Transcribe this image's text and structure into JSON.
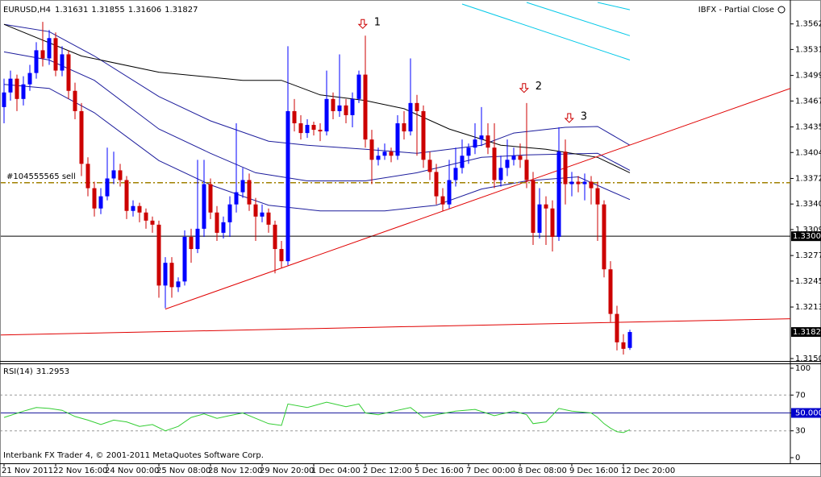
{
  "chart_data": {
    "type": "candlestick",
    "title": "EURUSD,H4",
    "broker": "IBFX - Partial Close",
    "footer": "Interbank FX Trader 4, © 2001-2011 MetaQuotes Software Corp.",
    "up_color": "#0000ff",
    "down_color": "#cc0000",
    "xlim": [
      -0.625,
      121.875
    ],
    "ylim": [
      1.3147,
      1.359
    ],
    "yticks": [
      1.35625,
      {
        "value": 1.3531,
        "label": "1.35310"
      },
      {
        "value": 1.3499,
        "label": "1.34990"
      },
      1.34675,
      1.34355,
      {
        "value": 1.3404,
        "label": "1.34040"
      },
      {
        "value": 1.3372,
        "label": "1.33720"
      },
      1.33405,
      {
        "value": 1.3309,
        "label": "1.33090"
      },
      {
        "value": 1.3277,
        "label": "1.32770"
      },
      1.32455,
      1.32135,
      {
        "value": 1.315,
        "label": "1.31500"
      }
    ],
    "xticks": [
      {
        "value": 0,
        "label": "21 Nov 2011"
      },
      {
        "value": 8,
        "label": "22 Nov 16:00"
      },
      {
        "value": 16,
        "label": "24 Nov 00:00"
      },
      {
        "value": 24,
        "label": "25 Nov 08:00"
      },
      {
        "value": 32,
        "label": "28 Nov 12:00"
      },
      {
        "value": 40,
        "label": "29 Nov 20:00"
      },
      {
        "value": 48,
        "label": "1 Dec 04:00"
      },
      {
        "value": 56,
        "label": "2 Dec 12:00"
      },
      {
        "value": 64,
        "label": "5 Dec 16:00"
      },
      {
        "value": 72,
        "label": "7 Dec 00:00"
      },
      {
        "value": 80,
        "label": "8 Dec 08:00"
      },
      {
        "value": 88,
        "label": "9 Dec 16:00"
      },
      {
        "value": 96,
        "label": "12 Dec 20:00"
      }
    ],
    "ohlc": [
      [
        1.346,
        1.3495,
        1.344,
        1.3478
      ],
      [
        1.3478,
        1.3505,
        1.3468,
        1.3495
      ],
      [
        1.3495,
        1.35,
        1.3455,
        1.347
      ],
      [
        1.347,
        1.3498,
        1.3462,
        1.3488
      ],
      [
        1.3488,
        1.3512,
        1.348,
        1.3502
      ],
      [
        1.3502,
        1.354,
        1.3495,
        1.353
      ],
      [
        1.353,
        1.3565,
        1.351,
        1.352
      ],
      [
        1.352,
        1.3555,
        1.3512,
        1.3545
      ],
      [
        1.3545,
        1.3552,
        1.3498,
        1.3505
      ],
      [
        1.3505,
        1.3535,
        1.3498,
        1.3525
      ],
      [
        1.3525,
        1.353,
        1.347,
        1.348
      ],
      [
        1.348,
        1.349,
        1.3445,
        1.3455
      ],
      [
        1.3455,
        1.3465,
        1.3375,
        1.339
      ],
      [
        1.339,
        1.3398,
        1.335,
        1.336
      ],
      [
        1.336,
        1.3368,
        1.3325,
        1.3335
      ],
      [
        1.3335,
        1.336,
        1.3328,
        1.335
      ],
      [
        1.335,
        1.341,
        1.3345,
        1.3372
      ],
      [
        1.3372,
        1.3405,
        1.3365,
        1.3382
      ],
      [
        1.3382,
        1.339,
        1.3362,
        1.337
      ],
      [
        1.337,
        1.3375,
        1.3322,
        1.3332
      ],
      [
        1.3332,
        1.3345,
        1.3325,
        1.3338
      ],
      [
        1.3338,
        1.3342,
        1.3318,
        1.333
      ],
      [
        1.333,
        1.3335,
        1.331,
        1.332
      ],
      [
        1.332,
        1.3325,
        1.3305,
        1.3315
      ],
      [
        1.3315,
        1.332,
        1.3225,
        1.324
      ],
      [
        1.324,
        1.3275,
        1.3212,
        1.3268
      ],
      [
        1.3268,
        1.3275,
        1.3225,
        1.3238
      ],
      [
        1.3238,
        1.325,
        1.3232,
        1.3245
      ],
      [
        1.3245,
        1.3308,
        1.324,
        1.33
      ],
      [
        1.33,
        1.331,
        1.3268,
        1.3285
      ],
      [
        1.3285,
        1.3395,
        1.328,
        1.331
      ],
      [
        1.331,
        1.3395,
        1.33,
        1.3365
      ],
      [
        1.3365,
        1.3372,
        1.3322,
        1.333
      ],
      [
        1.333,
        1.3338,
        1.3295,
        1.3305
      ],
      [
        1.3305,
        1.3325,
        1.3298,
        1.3318
      ],
      [
        1.3318,
        1.335,
        1.33,
        1.334
      ],
      [
        1.334,
        1.344,
        1.333,
        1.3355
      ],
      [
        1.3355,
        1.3385,
        1.3348,
        1.337
      ],
      [
        1.337,
        1.3378,
        1.3332,
        1.334
      ],
      [
        1.334,
        1.3348,
        1.3295,
        1.3325
      ],
      [
        1.3325,
        1.334,
        1.3318,
        1.333
      ],
      [
        1.333,
        1.3335,
        1.3305,
        1.3315
      ],
      [
        1.3315,
        1.332,
        1.3255,
        1.3285
      ],
      [
        1.3285,
        1.3295,
        1.3262,
        1.327
      ],
      [
        1.327,
        1.3535,
        1.3265,
        1.3455
      ],
      [
        1.3455,
        1.347,
        1.343,
        1.344
      ],
      [
        1.344,
        1.345,
        1.342,
        1.3428
      ],
      [
        1.3428,
        1.3445,
        1.3422,
        1.3438
      ],
      [
        1.3438,
        1.3442,
        1.3425,
        1.3432
      ],
      [
        1.3432,
        1.344,
        1.3418,
        1.343
      ],
      [
        1.343,
        1.3505,
        1.3425,
        1.347
      ],
      [
        1.347,
        1.3478,
        1.3445,
        1.3455
      ],
      [
        1.3455,
        1.3525,
        1.3448,
        1.3462
      ],
      [
        1.3462,
        1.347,
        1.344,
        1.345
      ],
      [
        1.345,
        1.3478,
        1.3435,
        1.347
      ],
      [
        1.347,
        1.3505,
        1.3465,
        1.35
      ],
      [
        1.35,
        1.3548,
        1.341,
        1.342
      ],
      [
        1.342,
        1.3432,
        1.3365,
        1.3395
      ],
      [
        1.3395,
        1.341,
        1.3388,
        1.34
      ],
      [
        1.34,
        1.3415,
        1.3395,
        1.3405
      ],
      [
        1.3405,
        1.341,
        1.3392,
        1.34
      ],
      [
        1.34,
        1.345,
        1.3395,
        1.344
      ],
      [
        1.344,
        1.3455,
        1.342,
        1.343
      ],
      [
        1.343,
        1.352,
        1.3425,
        1.3465
      ],
      [
        1.3465,
        1.3475,
        1.34,
        1.3455
      ],
      [
        1.3455,
        1.3462,
        1.3385,
        1.3395
      ],
      [
        1.3395,
        1.3405,
        1.337,
        1.338
      ],
      [
        1.338,
        1.339,
        1.334,
        1.335
      ],
      [
        1.335,
        1.336,
        1.3332,
        1.334
      ],
      [
        1.334,
        1.3395,
        1.3335,
        1.337
      ],
      [
        1.337,
        1.341,
        1.3362,
        1.3385
      ],
      [
        1.3385,
        1.342,
        1.3378,
        1.34
      ],
      [
        1.34,
        1.3415,
        1.339,
        1.341
      ],
      [
        1.341,
        1.344,
        1.3402,
        1.342
      ],
      [
        1.342,
        1.346,
        1.3412,
        1.3425
      ],
      [
        1.3425,
        1.344,
        1.3402,
        1.341
      ],
      [
        1.341,
        1.344,
        1.336,
        1.337
      ],
      [
        1.337,
        1.34,
        1.3362,
        1.3385
      ],
      [
        1.3385,
        1.342,
        1.3375,
        1.3395
      ],
      [
        1.3395,
        1.341,
        1.3388,
        1.34
      ],
      [
        1.34,
        1.3415,
        1.3385,
        1.3395
      ],
      [
        1.3395,
        1.3465,
        1.336,
        1.337
      ],
      [
        1.337,
        1.338,
        1.329,
        1.3305
      ],
      [
        1.3305,
        1.336,
        1.3298,
        1.334
      ],
      [
        1.334,
        1.335,
        1.329,
        1.3335
      ],
      [
        1.3335,
        1.3345,
        1.3282,
        1.33
      ],
      [
        1.33,
        1.3435,
        1.3295,
        1.3405
      ],
      [
        1.3405,
        1.342,
        1.334,
        1.3365
      ],
      [
        1.3365,
        1.338,
        1.335,
        1.3368
      ],
      [
        1.3368,
        1.3375,
        1.3355,
        1.3365
      ],
      [
        1.3365,
        1.3378,
        1.3345,
        1.3368
      ],
      [
        1.3368,
        1.3375,
        1.334,
        1.336
      ],
      [
        1.336,
        1.3368,
        1.3295,
        1.334
      ],
      [
        1.334,
        1.3345,
        1.325,
        1.326
      ],
      [
        1.326,
        1.327,
        1.3195,
        1.3205
      ],
      [
        1.3205,
        1.3215,
        1.316,
        1.317
      ],
      [
        1.317,
        1.318,
        1.3155,
        1.3162
      ],
      [
        1.31631,
        1.31855,
        1.31606,
        1.31827
      ]
    ],
    "lines": [
      {
        "color": "#1c1c9c",
        "x": [
          0,
          7,
          14,
          24,
          32,
          41,
          47,
          56,
          64,
          74,
          79,
          87,
          92,
          97
        ],
        "values": [
          1.3562,
          1.3553,
          1.3523,
          1.3473,
          1.3443,
          1.3418,
          1.3413,
          1.3408,
          1.3403,
          1.3413,
          1.3428,
          1.3435,
          1.3436,
          1.3413
        ]
      },
      {
        "color": "#1c1c9c",
        "x": [
          0,
          7,
          14,
          24,
          32,
          39,
          47,
          56,
          64,
          74,
          81,
          92,
          97
        ],
        "values": [
          1.3528,
          1.3518,
          1.3493,
          1.3433,
          1.3403,
          1.3379,
          1.3369,
          1.3369,
          1.3379,
          1.3398,
          1.3401,
          1.3403,
          1.3382
        ]
      },
      {
        "color": "#1c1c9c",
        "x": [
          0,
          7,
          14,
          24,
          32,
          41,
          49,
          59,
          67,
          74,
          81,
          89,
          97
        ],
        "values": [
          1.3488,
          1.3483,
          1.3453,
          1.3394,
          1.3364,
          1.3339,
          1.3332,
          1.3332,
          1.3339,
          1.3359,
          1.3369,
          1.3374,
          1.3346
        ]
      },
      {
        "color": "#000000",
        "x": [
          0,
          12,
          24,
          37,
          43,
          49,
          56,
          62,
          69,
          77,
          84,
          92,
          97
        ],
        "values": [
          1.3562,
          1.3523,
          1.3503,
          1.3493,
          1.3493,
          1.3475,
          1.3468,
          1.3458,
          1.3433,
          1.3413,
          1.3408,
          1.3398,
          1.3379
        ]
      },
      {
        "color": "#00c8e8",
        "x": [
          71,
          97
        ],
        "values": [
          1.3587,
          1.3518
        ]
      },
      {
        "color": "#00c8e8",
        "x": [
          81,
          97
        ],
        "values": [
          1.3589,
          1.3548
        ]
      },
      {
        "color": "#00c8e8",
        "x": [
          92,
          97
        ],
        "values": [
          1.3589,
          1.358
        ]
      },
      {
        "color": "#e00000",
        "x": [
          25,
          121.875
        ],
        "values": [
          1.3211,
          1.3483
        ]
      },
      {
        "color": "#e00000",
        "x": [
          -0.625,
          121.875
        ],
        "values": [
          1.3179,
          1.3199
        ]
      }
    ],
    "hlines": [
      {
        "value": 1.33008,
        "color": "#000000"
      }
    ],
    "orders": [
      {
        "label": "#104555565 sell",
        "value": 1.33667,
        "color": "#a08000"
      }
    ],
    "annotations": [
      {
        "text": "1",
        "x": 55.6,
        "y": 1.3562
      },
      {
        "text": "2",
        "x": 80.6,
        "y": 1.3483
      },
      {
        "text": "3",
        "x": 87.6,
        "y": 1.3446
      }
    ],
    "rsi": {
      "title": "RSI(14)",
      "color": "#32cd32",
      "ylim": [
        -6.3,
        105.4
      ],
      "yticks": [
        100,
        70,
        {
          "value": 50,
          "label": "50.0000"
        },
        30,
        0
      ],
      "levels": [
        70,
        30
      ],
      "baseline": 50,
      "x": [
        0,
        3,
        5,
        7,
        9,
        11,
        13,
        15,
        17,
        19,
        21,
        23,
        25,
        27,
        29,
        31,
        33,
        35,
        37,
        39,
        41,
        43,
        44,
        47,
        50,
        53,
        55,
        56,
        58,
        61,
        63,
        65,
        67,
        70,
        73,
        76,
        79,
        81,
        82,
        84,
        86,
        88,
        91,
        92,
        93,
        94,
        95,
        96,
        97
      ],
      "values": [
        45,
        52,
        56,
        55,
        53,
        46,
        42,
        37,
        42,
        40,
        35,
        37,
        30,
        35,
        45,
        49,
        44,
        47,
        50,
        44,
        38,
        36,
        60,
        56,
        62,
        57,
        60,
        50,
        48,
        53,
        56,
        45,
        48,
        52,
        54,
        47,
        52,
        48,
        38,
        40,
        55,
        52,
        50,
        45,
        38,
        33,
        29,
        28,
        31.2953
      ]
    }
  }
}
